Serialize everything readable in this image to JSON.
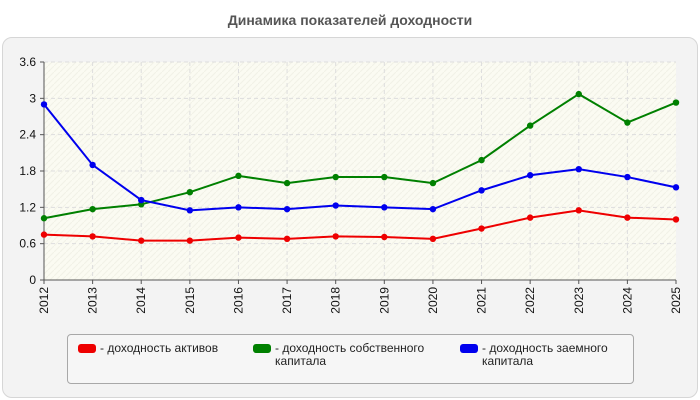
{
  "chart_data": {
    "type": "line",
    "title": "Динамика показателей доходности",
    "categories": [
      "2012",
      "2013",
      "2014",
      "2015",
      "2016",
      "2017",
      "2018",
      "2019",
      "2020",
      "2021",
      "2022",
      "2023",
      "2024",
      "2025"
    ],
    "series": [
      {
        "name": "- доходность активов",
        "color": "#ee0000",
        "values": [
          0.75,
          0.72,
          0.65,
          0.65,
          0.7,
          0.68,
          0.72,
          0.71,
          0.68,
          0.85,
          1.03,
          1.15,
          1.03,
          1.0
        ]
      },
      {
        "name": "- доходность собственного капитала",
        "color": "#008000",
        "values": [
          1.02,
          1.17,
          1.25,
          1.45,
          1.72,
          1.6,
          1.7,
          1.7,
          1.6,
          1.98,
          2.55,
          3.07,
          2.6,
          2.93
        ]
      },
      {
        "name": "- доходность заемного капитала",
        "color": "#0000ee",
        "values": [
          2.9,
          1.9,
          1.32,
          1.15,
          1.2,
          1.17,
          1.23,
          1.2,
          1.17,
          1.48,
          1.73,
          1.83,
          1.7,
          1.53
        ]
      }
    ],
    "ylim": [
      0,
      3.6
    ],
    "yticks": [
      "0",
      "0.6",
      "1.2",
      "1.8",
      "2.4",
      "3",
      "3.6"
    ],
    "grid": true,
    "legend_position": "bottom"
  }
}
